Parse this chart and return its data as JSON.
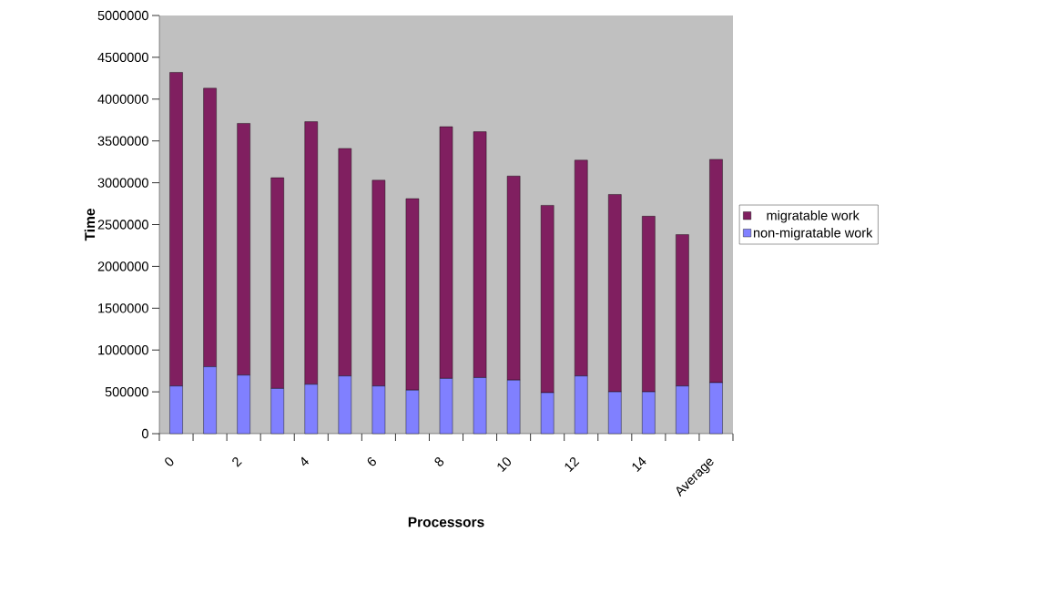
{
  "chart_data": {
    "type": "bar",
    "stacked": true,
    "xlabel": "Processors",
    "ylabel": "Time",
    "categories": [
      "0",
      null,
      "2",
      null,
      "4",
      null,
      "6",
      null,
      "8",
      null,
      "10",
      null,
      "12",
      null,
      "14",
      null,
      "Average"
    ],
    "series": [
      {
        "name": "non-migratable work",
        "color": "#8080ff",
        "values": [
          570000,
          800000,
          700000,
          540000,
          590000,
          690000,
          570000,
          520000,
          660000,
          670000,
          640000,
          490000,
          690000,
          500000,
          500000,
          570000,
          610000
        ]
      },
      {
        "name": "migratable work",
        "color": "#801f60",
        "values": [
          3750000,
          3330000,
          3010000,
          2520000,
          3140000,
          2720000,
          2460000,
          2290000,
          3010000,
          2940000,
          2440000,
          2240000,
          2580000,
          2360000,
          2100000,
          1810000,
          2670000
        ]
      }
    ],
    "ylim": [
      0,
      5000000
    ],
    "yticks": [
      0,
      500000,
      1000000,
      1500000,
      2000000,
      2500000,
      3000000,
      3500000,
      4000000,
      4500000,
      5000000
    ],
    "grid": false,
    "legend": "right"
  }
}
